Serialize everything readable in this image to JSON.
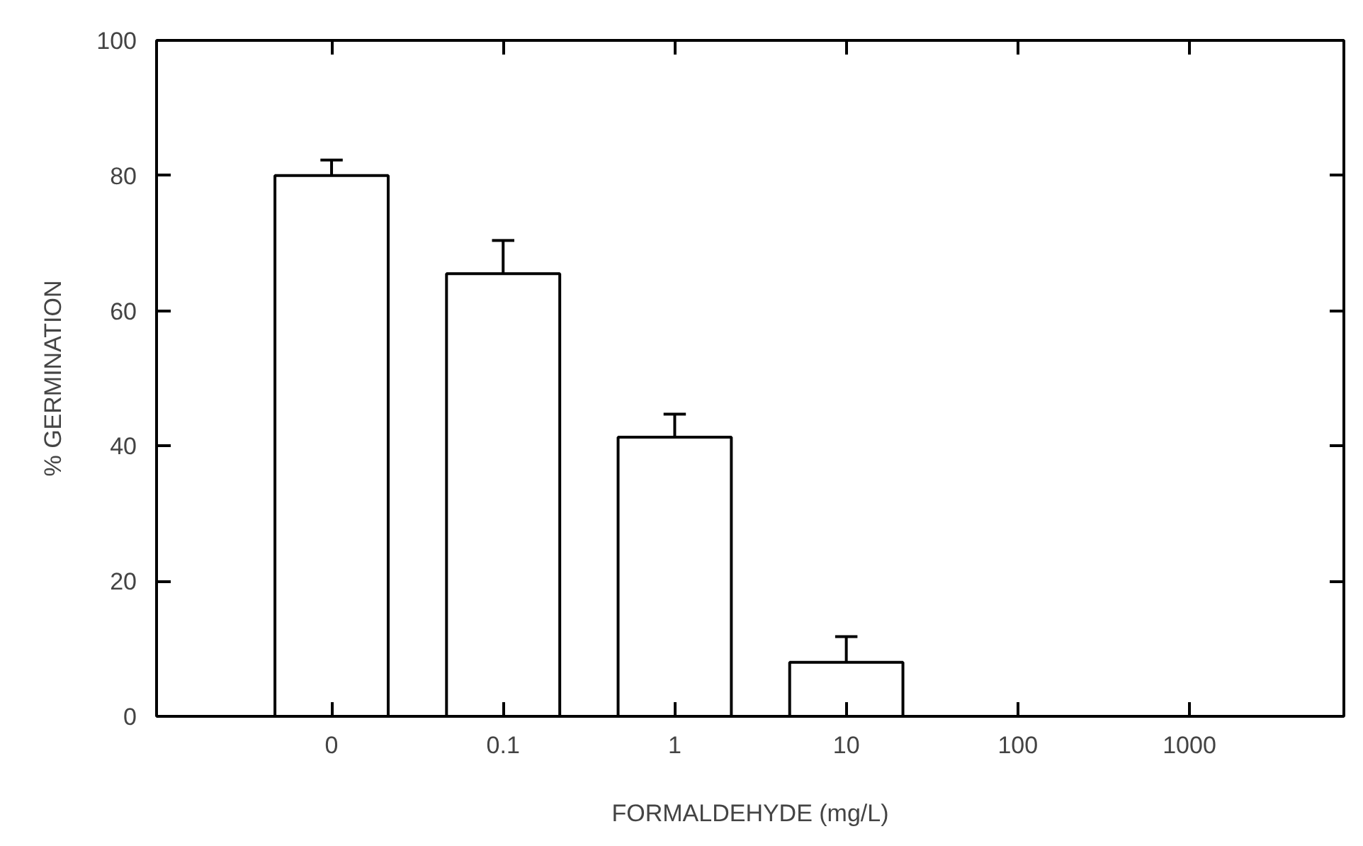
{
  "chart_data": {
    "type": "bar",
    "xlabel": "FORMALDEHYDE (mg/L)",
    "ylabel": "% GERMINATION",
    "categories": [
      "0",
      "0.1",
      "1",
      "10",
      "100",
      "1000"
    ],
    "values": [
      80,
      65.5,
      41.3,
      8,
      null,
      null
    ],
    "errors": [
      [
        80,
        82.3
      ],
      [
        65.5,
        70.4
      ],
      [
        41.3,
        44.7
      ],
      [
        8,
        11.8
      ],
      null,
      null
    ],
    "color": "#ffffff",
    "ylim": [
      0,
      100
    ],
    "yticks": [
      0,
      20,
      40,
      60,
      80,
      100
    ],
    "grid": false
  }
}
